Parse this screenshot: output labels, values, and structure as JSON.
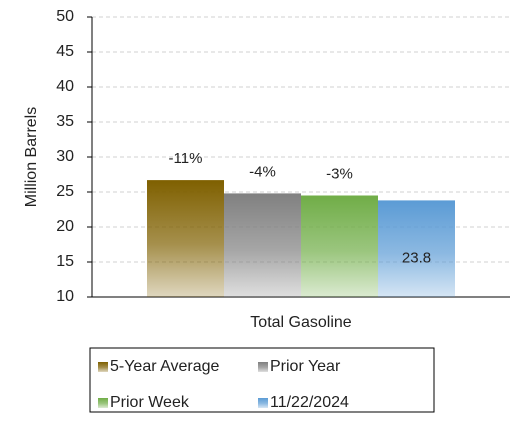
{
  "chart_data": {
    "type": "bar",
    "categories": [
      "Total Gasoline"
    ],
    "ylabel": "Million Barrels",
    "ylim": [
      10,
      50
    ],
    "yticks": [
      10,
      15,
      20,
      25,
      30,
      35,
      40,
      45,
      50
    ],
    "grid": true,
    "legend": "bottom",
    "series": [
      {
        "name": "5-Year Average",
        "color": "#7f6000",
        "values": [
          26.7
        ],
        "annotation": "-11%"
      },
      {
        "name": "Prior Year",
        "color": "#808080",
        "values": [
          24.8
        ],
        "annotation": "-4%"
      },
      {
        "name": "Prior Week",
        "color": "#70ad47",
        "values": [
          24.5
        ],
        "annotation": "-3%"
      },
      {
        "name": "11/22/2024",
        "color": "#5b9bd5",
        "values": [
          23.8
        ],
        "value_labels": [
          "23.8"
        ]
      }
    ]
  }
}
